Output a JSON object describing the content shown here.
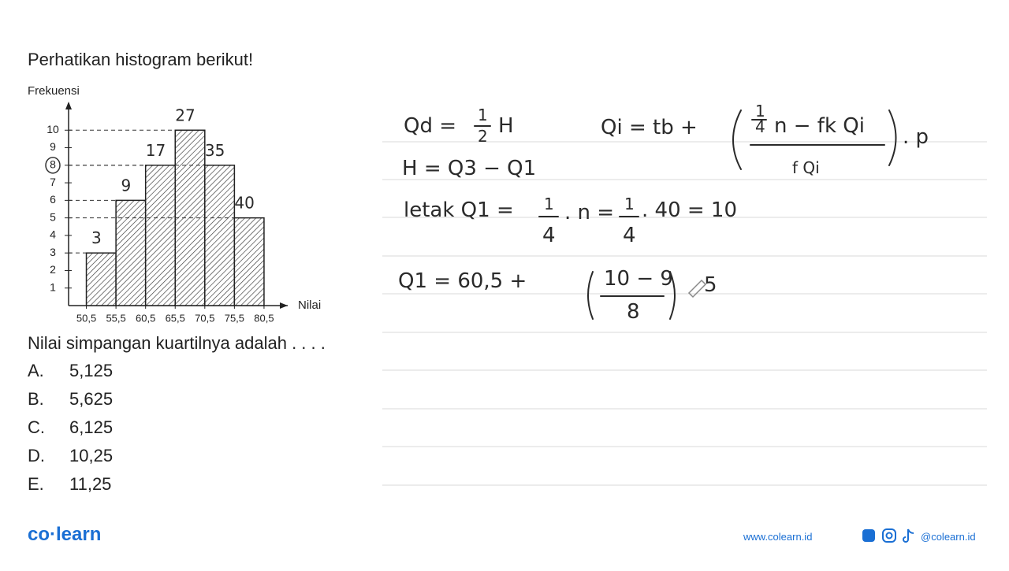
{
  "question": {
    "intro": "Perhatikan histogram berikut!",
    "prompt": "Nilai simpangan kuartilnya adalah . . . .",
    "options": [
      {
        "letter": "A.",
        "text": "5,125"
      },
      {
        "letter": "B.",
        "text": "5,625"
      },
      {
        "letter": "C.",
        "text": "6,125"
      },
      {
        "letter": "D.",
        "text": "10,25"
      },
      {
        "letter": "E.",
        "text": "11,25"
      }
    ]
  },
  "chart_data": {
    "type": "histogram",
    "y_label": "Frekuensi",
    "x_label": "Nilai",
    "bins": [
      {
        "value": 50.5,
        "label": "50,5"
      },
      {
        "value": 55.5,
        "label": "55,5"
      },
      {
        "value": 60.5,
        "label": "60,5"
      },
      {
        "value": 65.5,
        "label": "65,5"
      },
      {
        "value": 70.5,
        "label": "70,5"
      },
      {
        "value": 75.5,
        "label": "75,5"
      },
      {
        "value": 80.5,
        "label": "80,5"
      }
    ],
    "values": [
      3,
      6,
      8,
      10,
      8,
      5
    ],
    "annotations": [
      "3",
      "9",
      "17",
      "27",
      "35",
      "40"
    ],
    "xlim": [
      47.5,
      84.5
    ],
    "ylim": [
      0,
      11
    ],
    "yticks": [
      1,
      2,
      3,
      4,
      5,
      6,
      7,
      8,
      9,
      10
    ],
    "color": "#222222"
  },
  "work": [
    "Qd =",
    "1",
    "2",
    "H",
    "H = Q3 − Q1",
    "Qi = tb +",
    "1",
    "4",
    "n − fk Qi",
    "f Qi",
    ". p",
    "letak Q1 =",
    "1",
    "4",
    ". n =",
    "1",
    "4",
    ". 40 = 10",
    "Q1  =  60,5 +",
    "10 − 9",
    "8",
    "5"
  ],
  "footer": {
    "brand": "co·learn",
    "website": "www.colearn.id",
    "social": "@colearn.id"
  }
}
